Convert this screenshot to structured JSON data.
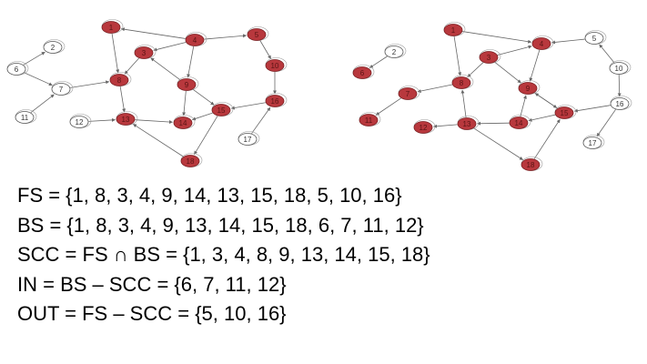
{
  "colors": {
    "highlight": "#b8383d",
    "plain": "#ffffff",
    "edge": "#666666"
  },
  "graphs": [
    {
      "id": "left",
      "nodes": [
        {
          "label": "1",
          "highlighted": true
        },
        {
          "label": "2",
          "highlighted": false
        },
        {
          "label": "3",
          "highlighted": true
        },
        {
          "label": "4",
          "highlighted": true
        },
        {
          "label": "5",
          "highlighted": true
        },
        {
          "label": "6",
          "highlighted": false
        },
        {
          "label": "7",
          "highlighted": false
        },
        {
          "label": "8",
          "highlighted": true
        },
        {
          "label": "9",
          "highlighted": true
        },
        {
          "label": "10",
          "highlighted": true
        },
        {
          "label": "11",
          "highlighted": false
        },
        {
          "label": "12",
          "highlighted": false
        },
        {
          "label": "13",
          "highlighted": true
        },
        {
          "label": "14",
          "highlighted": true
        },
        {
          "label": "15",
          "highlighted": true
        },
        {
          "label": "16",
          "highlighted": true
        },
        {
          "label": "17",
          "highlighted": false
        },
        {
          "label": "18",
          "highlighted": true
        }
      ]
    },
    {
      "id": "right",
      "nodes": [
        {
          "label": "1",
          "highlighted": true
        },
        {
          "label": "2",
          "highlighted": false
        },
        {
          "label": "3",
          "highlighted": true
        },
        {
          "label": "4",
          "highlighted": true
        },
        {
          "label": "5",
          "highlighted": false
        },
        {
          "label": "6",
          "highlighted": true
        },
        {
          "label": "7",
          "highlighted": true
        },
        {
          "label": "8",
          "highlighted": true
        },
        {
          "label": "9",
          "highlighted": true
        },
        {
          "label": "10",
          "highlighted": false
        },
        {
          "label": "11",
          "highlighted": true
        },
        {
          "label": "12",
          "highlighted": true
        },
        {
          "label": "13",
          "highlighted": true
        },
        {
          "label": "14",
          "highlighted": true
        },
        {
          "label": "15",
          "highlighted": true
        },
        {
          "label": "16",
          "highlighted": false
        },
        {
          "label": "17",
          "highlighted": false
        },
        {
          "label": "18",
          "highlighted": true
        }
      ]
    }
  ],
  "equations": [
    "FS = {1, 8, 3, 4, 9, 14, 13, 15, 18, 5, 10, 16}",
    "BS = {1, 8, 3, 4, 9, 13, 14, 15, 18, 6, 7, 11, 12}",
    "SCC = FS ∩ BS = {1, 3, 4, 8, 9, 13, 14, 15, 18}",
    "IN = BS – SCC = {6, 7, 11, 12}",
    "OUT = FS – SCC = {5, 10, 16}"
  ]
}
